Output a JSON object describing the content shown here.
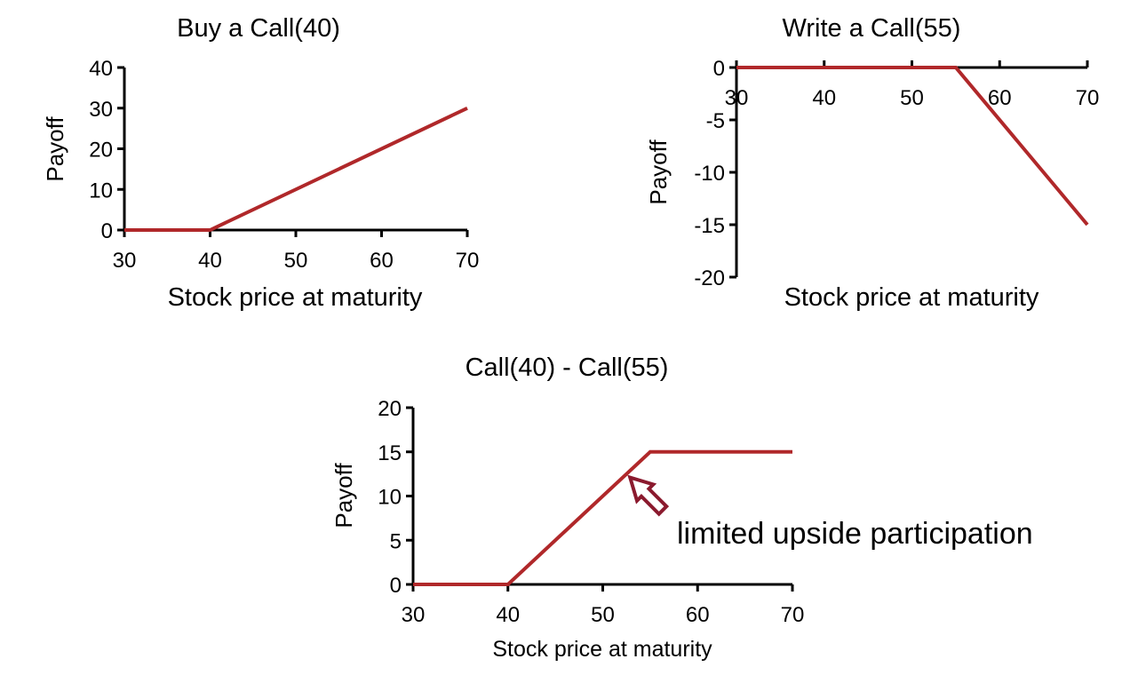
{
  "colors": {
    "series": "#B0282A",
    "axis": "#000000",
    "arrow": "#8B1A2E"
  },
  "chart_data": [
    {
      "type": "line",
      "title": "Buy a Call(40)",
      "xlabel": "Stock price at maturity",
      "ylabel": "Payoff",
      "xlim": [
        30,
        70
      ],
      "ylim": [
        0,
        40
      ],
      "xticks": [
        30,
        40,
        50,
        60,
        70
      ],
      "yticks": [
        0,
        10,
        20,
        30,
        40
      ],
      "x_axis_at": "bottom",
      "series": [
        {
          "x": [
            30,
            40,
            70
          ],
          "y": [
            0,
            0,
            30
          ]
        }
      ]
    },
    {
      "type": "line",
      "title": "Write a Call(55)",
      "xlabel": "Stock price at maturity",
      "ylabel": "Payoff",
      "xlim": [
        30,
        70
      ],
      "ylim": [
        -20,
        0
      ],
      "xticks": [
        30,
        40,
        50,
        60,
        70
      ],
      "yticks": [
        0,
        -5,
        -10,
        -15,
        -20
      ],
      "x_axis_at": "top",
      "series": [
        {
          "x": [
            30,
            55,
            70
          ],
          "y": [
            0,
            0,
            -15
          ]
        }
      ]
    },
    {
      "type": "line",
      "title": "Call(40) - Call(55)",
      "xlabel": "Stock price at maturity",
      "ylabel": "Payoff",
      "xlim": [
        30,
        70
      ],
      "ylim": [
        0,
        20
      ],
      "xticks": [
        30,
        40,
        50,
        60,
        70
      ],
      "yticks": [
        0,
        5,
        10,
        15,
        20
      ],
      "x_axis_at": "bottom",
      "series": [
        {
          "x": [
            30,
            40,
            55,
            70
          ],
          "y": [
            0,
            0,
            15,
            15
          ]
        }
      ],
      "annotations": [
        {
          "text": "limited upside participation",
          "arrow_points_to": [
            52.5,
            12.5
          ]
        }
      ]
    }
  ]
}
